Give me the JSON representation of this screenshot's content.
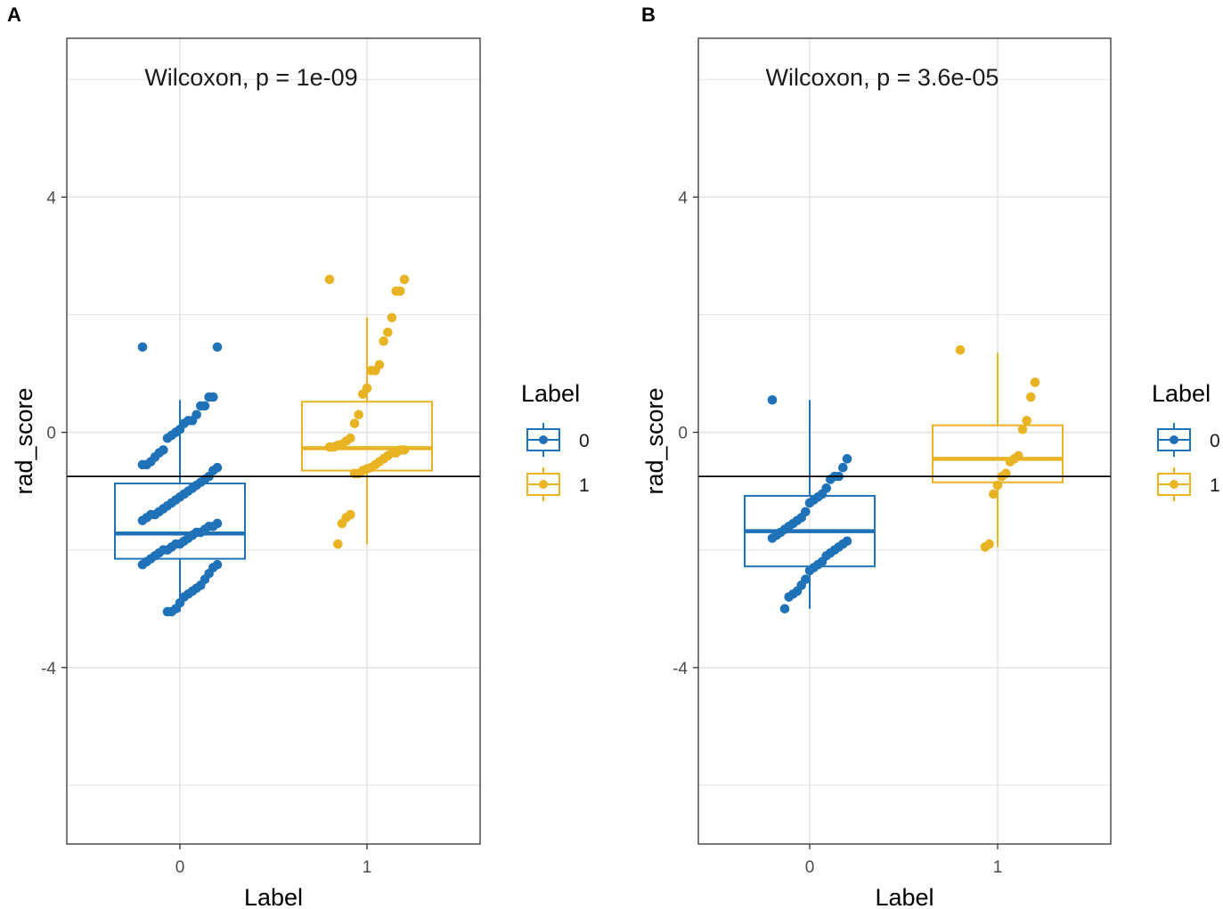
{
  "colors": {
    "group0": "#1f72b8",
    "group1": "#e8b424",
    "grid": "#e3e3e3",
    "hline": "#000000"
  },
  "chart_data": [
    {
      "panel": "A",
      "type": "boxplot-jitter",
      "annotation": "Wilcoxon, p = 1e-09",
      "xlabel": "Label",
      "ylabel": "rad_score",
      "ylim": [
        -7,
        6.7
      ],
      "yticks": [
        -4,
        0,
        4
      ],
      "ytick_labels": [
        "-4",
        "0",
        "4"
      ],
      "categories": [
        "0",
        "1"
      ],
      "hline": -0.75,
      "legend": {
        "title": "Label",
        "entries": [
          "0",
          "1"
        ]
      },
      "boxes": [
        {
          "group": "0",
          "q1": -2.15,
          "median": -1.72,
          "q3": -0.87,
          "whisker_low": -3.05,
          "whisker_high": 0.55
        },
        {
          "group": "1",
          "q1": -0.65,
          "median": -0.27,
          "q3": 0.52,
          "whisker_low": -1.9,
          "whisker_high": 1.95
        }
      ],
      "points": [
        {
          "group": "0",
          "values": [
            1.45,
            1.45,
            0.6,
            0.6,
            0.45,
            0.45,
            0.3,
            0.2,
            0.2,
            0.15,
            0.05,
            0.0,
            -0.05,
            -0.1,
            -0.3,
            -0.35,
            -0.42,
            -0.5,
            -0.55,
            -0.55,
            -0.6,
            -0.65,
            -0.75,
            -0.8,
            -0.85,
            -0.9,
            -0.95,
            -1.0,
            -1.05,
            -1.1,
            -1.15,
            -1.2,
            -1.25,
            -1.3,
            -1.35,
            -1.4,
            -1.4,
            -1.45,
            -1.5,
            -1.55,
            -1.6,
            -1.6,
            -1.65,
            -1.7,
            -1.7,
            -1.75,
            -1.8,
            -1.85,
            -1.9,
            -1.9,
            -1.95,
            -2.0,
            -2.0,
            -2.05,
            -2.1,
            -2.15,
            -2.2,
            -2.25,
            -2.25,
            -2.3,
            -2.4,
            -2.5,
            -2.6,
            -2.65,
            -2.7,
            -2.75,
            -2.8,
            -2.9,
            -3.0,
            -3.05,
            -3.05
          ]
        },
        {
          "group": "1",
          "values": [
            2.6,
            2.6,
            2.4,
            2.4,
            1.95,
            1.7,
            1.55,
            1.15,
            1.05,
            1.05,
            0.75,
            0.65,
            0.3,
            0.15,
            -0.1,
            -0.15,
            -0.2,
            -0.22,
            -0.25,
            -0.25,
            -0.3,
            -0.3,
            -0.35,
            -0.35,
            -0.4,
            -0.45,
            -0.5,
            -0.55,
            -0.6,
            -0.62,
            -0.65,
            -0.7,
            -0.7,
            -1.4,
            -1.45,
            -1.55,
            -1.9
          ]
        }
      ]
    },
    {
      "panel": "B",
      "type": "boxplot-jitter",
      "annotation": "Wilcoxon, p = 3.6e-05",
      "xlabel": "Label",
      "ylabel": "rad_score",
      "ylim": [
        -7,
        6.7
      ],
      "yticks": [
        -4,
        0,
        4
      ],
      "ytick_labels": [
        "-4",
        "0",
        "4"
      ],
      "categories": [
        "0",
        "1"
      ],
      "hline": -0.75,
      "legend": {
        "title": "Label",
        "entries": [
          "0",
          "1"
        ]
      },
      "boxes": [
        {
          "group": "0",
          "q1": -2.28,
          "median": -1.68,
          "q3": -1.08,
          "whisker_low": -3.0,
          "whisker_high": 0.55
        },
        {
          "group": "1",
          "q1": -0.85,
          "median": -0.45,
          "q3": 0.12,
          "whisker_low": -1.95,
          "whisker_high": 1.35
        }
      ],
      "points": [
        {
          "group": "0",
          "values": [
            0.55,
            -0.45,
            -0.6,
            -0.75,
            -0.75,
            -0.8,
            -0.95,
            -1.05,
            -1.1,
            -1.15,
            -1.2,
            -1.35,
            -1.45,
            -1.5,
            -1.55,
            -1.6,
            -1.65,
            -1.7,
            -1.75,
            -1.8,
            -1.85,
            -1.9,
            -1.95,
            -2.0,
            -2.05,
            -2.1,
            -2.2,
            -2.25,
            -2.3,
            -2.35,
            -2.5,
            -2.6,
            -2.7,
            -2.75,
            -2.8,
            -3.0
          ]
        },
        {
          "group": "1",
          "values": [
            1.4,
            0.85,
            0.6,
            0.2,
            0.05,
            -0.4,
            -0.45,
            -0.5,
            -0.7,
            -0.75,
            -0.9,
            -1.05,
            -1.9,
            -1.95
          ]
        }
      ]
    }
  ]
}
